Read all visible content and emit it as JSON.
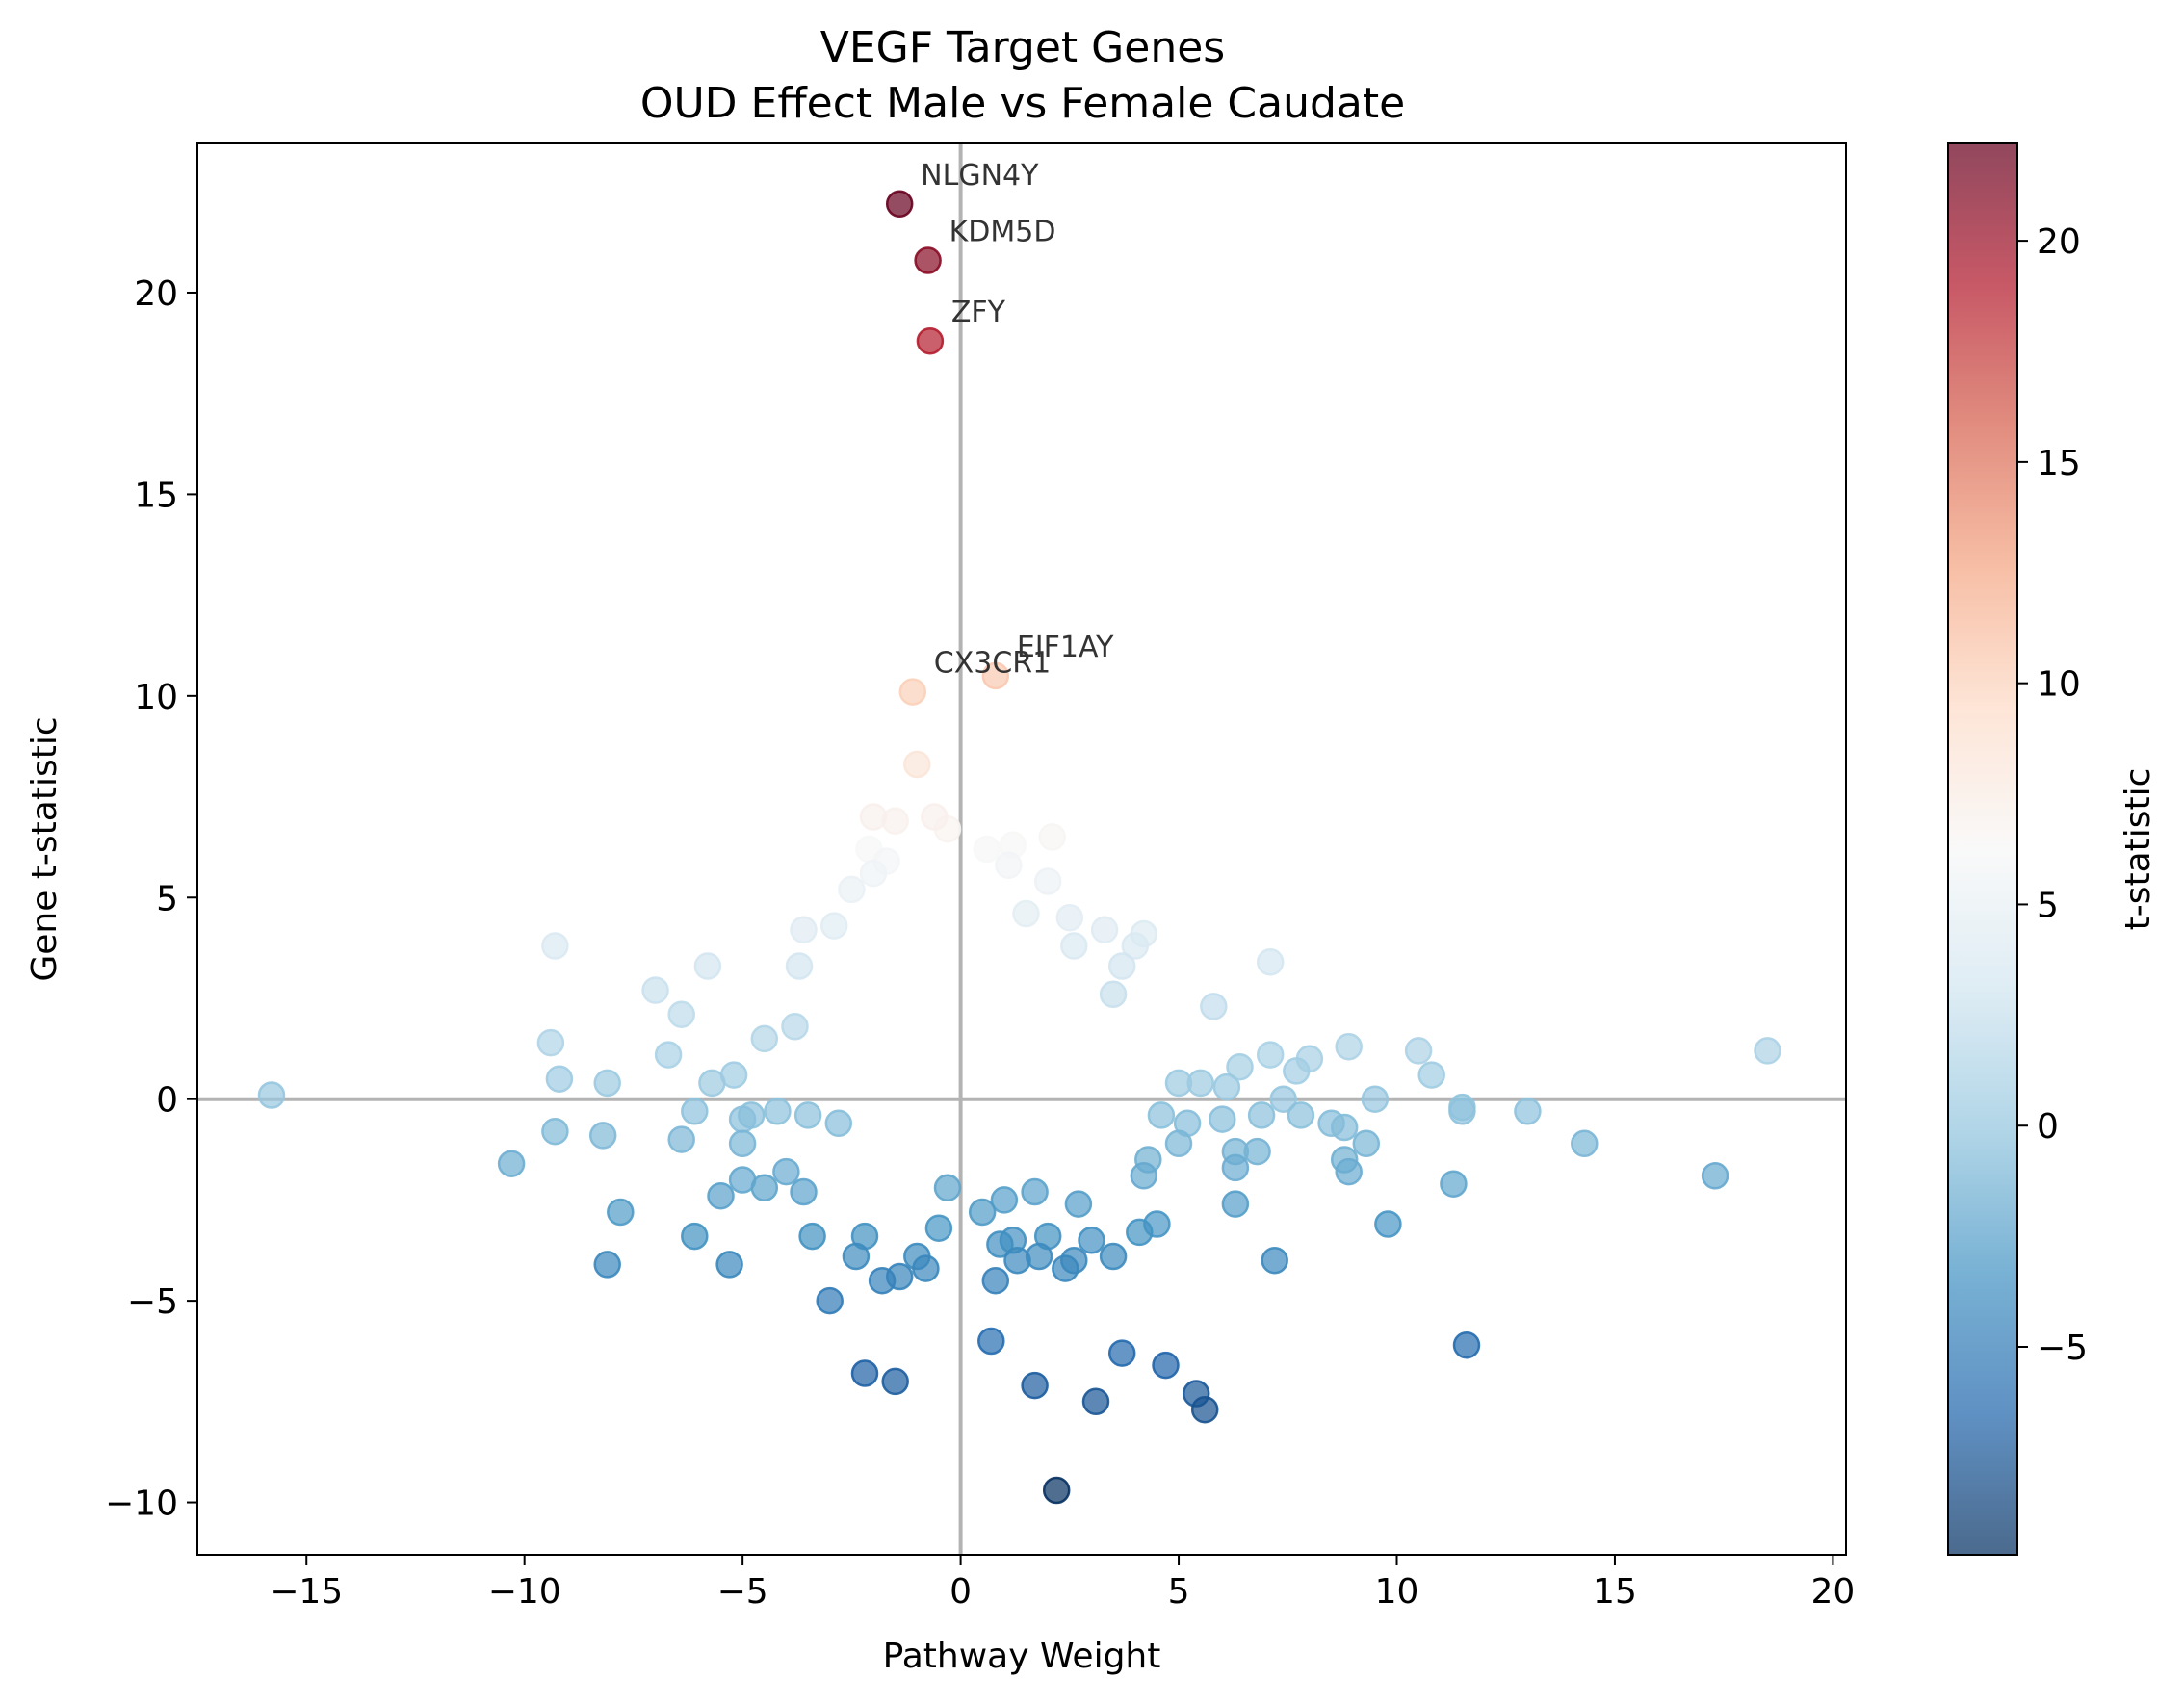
{
  "chart_data": {
    "type": "scatter",
    "title": "VEGF Target Genes",
    "subtitle": "OUD Effect Male vs Female Caudate",
    "xlabel": "Pathway Weight",
    "ylabel": "Gene t-statistic",
    "xlim": [
      -17.5,
      20.3
    ],
    "ylim": [
      -11.3,
      23.7
    ],
    "xticks": [
      -15,
      -10,
      -5,
      0,
      5,
      10,
      15,
      20
    ],
    "xtick_labels": [
      "−15",
      "−10",
      "−5",
      "0",
      "5",
      "10",
      "15",
      "20"
    ],
    "yticks": [
      -10,
      -5,
      0,
      5,
      10,
      15,
      20
    ],
    "ytick_labels": [
      "−10",
      "−5",
      "0",
      "5",
      "10",
      "15",
      "20"
    ],
    "grid": false,
    "reference_lines": {
      "x": 0,
      "y": 0
    },
    "colorbar": {
      "label": "t-statistic",
      "colormap": "RdBu_r",
      "range": [
        -9.7,
        22.2
      ],
      "center": 6.25,
      "ticks": [
        -5,
        0,
        5,
        10,
        15,
        20
      ],
      "tick_labels": [
        "−5",
        "0",
        "5",
        "10",
        "15",
        "20"
      ]
    },
    "annotations": [
      {
        "label": "NLGN4Y",
        "x": -1.4,
        "y": 22.2
      },
      {
        "label": "KDM5D",
        "x": -0.75,
        "y": 20.8
      },
      {
        "label": "ZFY",
        "x": -0.7,
        "y": 18.8
      },
      {
        "label": "EIF1AY",
        "x": 0.8,
        "y": 10.5
      },
      {
        "label": "CX3CR1",
        "x": -1.1,
        "y": 10.1
      }
    ],
    "points": [
      [
        -1.4,
        22.2
      ],
      [
        -0.75,
        20.8
      ],
      [
        -0.7,
        18.8
      ],
      [
        0.8,
        10.5
      ],
      [
        -1.1,
        10.1
      ],
      [
        -1.0,
        8.3
      ],
      [
        -2.0,
        7.0
      ],
      [
        -1.5,
        6.9
      ],
      [
        -0.6,
        7.0
      ],
      [
        -0.3,
        6.7
      ],
      [
        0.6,
        6.2
      ],
      [
        1.2,
        6.3
      ],
      [
        2.1,
        6.5
      ],
      [
        -2.1,
        6.2
      ],
      [
        -1.7,
        5.9
      ],
      [
        1.1,
        5.8
      ],
      [
        2.0,
        5.4
      ],
      [
        -2.5,
        5.2
      ],
      [
        -2.0,
        5.6
      ],
      [
        2.5,
        4.5
      ],
      [
        3.3,
        4.2
      ],
      [
        4.2,
        4.1
      ],
      [
        -3.6,
        4.2
      ],
      [
        -2.9,
        4.3
      ],
      [
        1.5,
        4.6
      ],
      [
        -9.3,
        3.8
      ],
      [
        -5.8,
        3.3
      ],
      [
        -7.0,
        2.7
      ],
      [
        -6.4,
        2.1
      ],
      [
        -3.7,
        3.3
      ],
      [
        2.6,
        3.8
      ],
      [
        3.7,
        3.3
      ],
      [
        4.0,
        3.8
      ],
      [
        3.5,
        2.6
      ],
      [
        7.1,
        3.4
      ],
      [
        5.8,
        2.3
      ],
      [
        -9.4,
        1.4
      ],
      [
        -6.7,
        1.1
      ],
      [
        -4.5,
        1.5
      ],
      [
        -3.8,
        1.8
      ],
      [
        -9.2,
        0.5
      ],
      [
        -8.1,
        0.4
      ],
      [
        -5.7,
        0.4
      ],
      [
        -5.2,
        0.6
      ],
      [
        -15.8,
        0.1
      ],
      [
        6.4,
        0.8
      ],
      [
        7.1,
        1.1
      ],
      [
        7.7,
        0.7
      ],
      [
        8.0,
        1.0
      ],
      [
        8.9,
        1.3
      ],
      [
        10.5,
        1.2
      ],
      [
        10.8,
        0.6
      ],
      [
        18.5,
        1.2
      ],
      [
        5.0,
        0.4
      ],
      [
        5.5,
        0.4
      ],
      [
        6.1,
        0.3
      ],
      [
        -6.1,
        -0.3
      ],
      [
        -5.0,
        -0.5
      ],
      [
        -9.3,
        -0.8
      ],
      [
        -8.2,
        -0.9
      ],
      [
        -6.4,
        -1.0
      ],
      [
        -5.0,
        -1.1
      ],
      [
        -10.3,
        -1.6
      ],
      [
        -4.8,
        -0.4
      ],
      [
        -4.2,
        -0.3
      ],
      [
        -3.5,
        -0.4
      ],
      [
        -2.8,
        -0.6
      ],
      [
        4.6,
        -0.4
      ],
      [
        5.2,
        -0.6
      ],
      [
        6.0,
        -0.5
      ],
      [
        6.9,
        -0.4
      ],
      [
        7.4,
        0.0
      ],
      [
        7.8,
        -0.4
      ],
      [
        8.5,
        -0.6
      ],
      [
        8.8,
        -0.7
      ],
      [
        9.5,
        0.0
      ],
      [
        11.5,
        -0.2
      ],
      [
        11.5,
        -0.3
      ],
      [
        13.0,
        -0.3
      ],
      [
        14.3,
        -1.1
      ],
      [
        9.3,
        -1.1
      ],
      [
        8.8,
        -1.5
      ],
      [
        8.9,
        -1.8
      ],
      [
        6.3,
        -1.3
      ],
      [
        6.8,
        -1.3
      ],
      [
        5.0,
        -1.1
      ],
      [
        4.3,
        -1.5
      ],
      [
        4.2,
        -1.9
      ],
      [
        6.3,
        -1.7
      ],
      [
        11.3,
        -2.1
      ],
      [
        17.3,
        -1.9
      ],
      [
        -7.8,
        -2.8
      ],
      [
        -8.1,
        -4.1
      ],
      [
        -6.1,
        -3.4
      ],
      [
        -5.3,
        -4.1
      ],
      [
        -5.5,
        -2.4
      ],
      [
        -5.0,
        -2.0
      ],
      [
        -4.5,
        -2.2
      ],
      [
        -4.0,
        -1.8
      ],
      [
        -3.6,
        -2.3
      ],
      [
        -3.4,
        -3.4
      ],
      [
        -2.4,
        -3.9
      ],
      [
        -2.2,
        -3.4
      ],
      [
        -1.8,
        -4.5
      ],
      [
        -1.4,
        -4.4
      ],
      [
        -1.0,
        -3.9
      ],
      [
        -0.8,
        -4.2
      ],
      [
        -3.0,
        -5.0
      ],
      [
        -2.2,
        -6.8
      ],
      [
        -1.5,
        -7.0
      ],
      [
        0.7,
        -6.0
      ],
      [
        1.7,
        -7.1
      ],
      [
        3.1,
        -7.5
      ],
      [
        3.7,
        -6.3
      ],
      [
        4.7,
        -6.6
      ],
      [
        5.4,
        -7.3
      ],
      [
        5.6,
        -7.7
      ],
      [
        2.2,
        -9.7
      ],
      [
        11.6,
        -6.1
      ],
      [
        7.2,
        -4.0
      ],
      [
        9.8,
        -3.1
      ],
      [
        6.3,
        -2.6
      ],
      [
        4.5,
        -3.1
      ],
      [
        4.1,
        -3.3
      ],
      [
        3.0,
        -3.5
      ],
      [
        2.6,
        -4.0
      ],
      [
        2.4,
        -4.2
      ],
      [
        1.8,
        -3.9
      ],
      [
        1.3,
        -4.0
      ],
      [
        0.8,
        -4.5
      ],
      [
        0.9,
        -3.6
      ],
      [
        1.2,
        -3.5
      ],
      [
        2.0,
        -3.4
      ],
      [
        3.5,
        -3.9
      ],
      [
        0.5,
        -2.8
      ],
      [
        1.0,
        -2.5
      ],
      [
        1.7,
        -2.3
      ],
      [
        2.7,
        -2.6
      ],
      [
        -0.5,
        -3.2
      ],
      [
        -0.3,
        -2.2
      ]
    ]
  }
}
